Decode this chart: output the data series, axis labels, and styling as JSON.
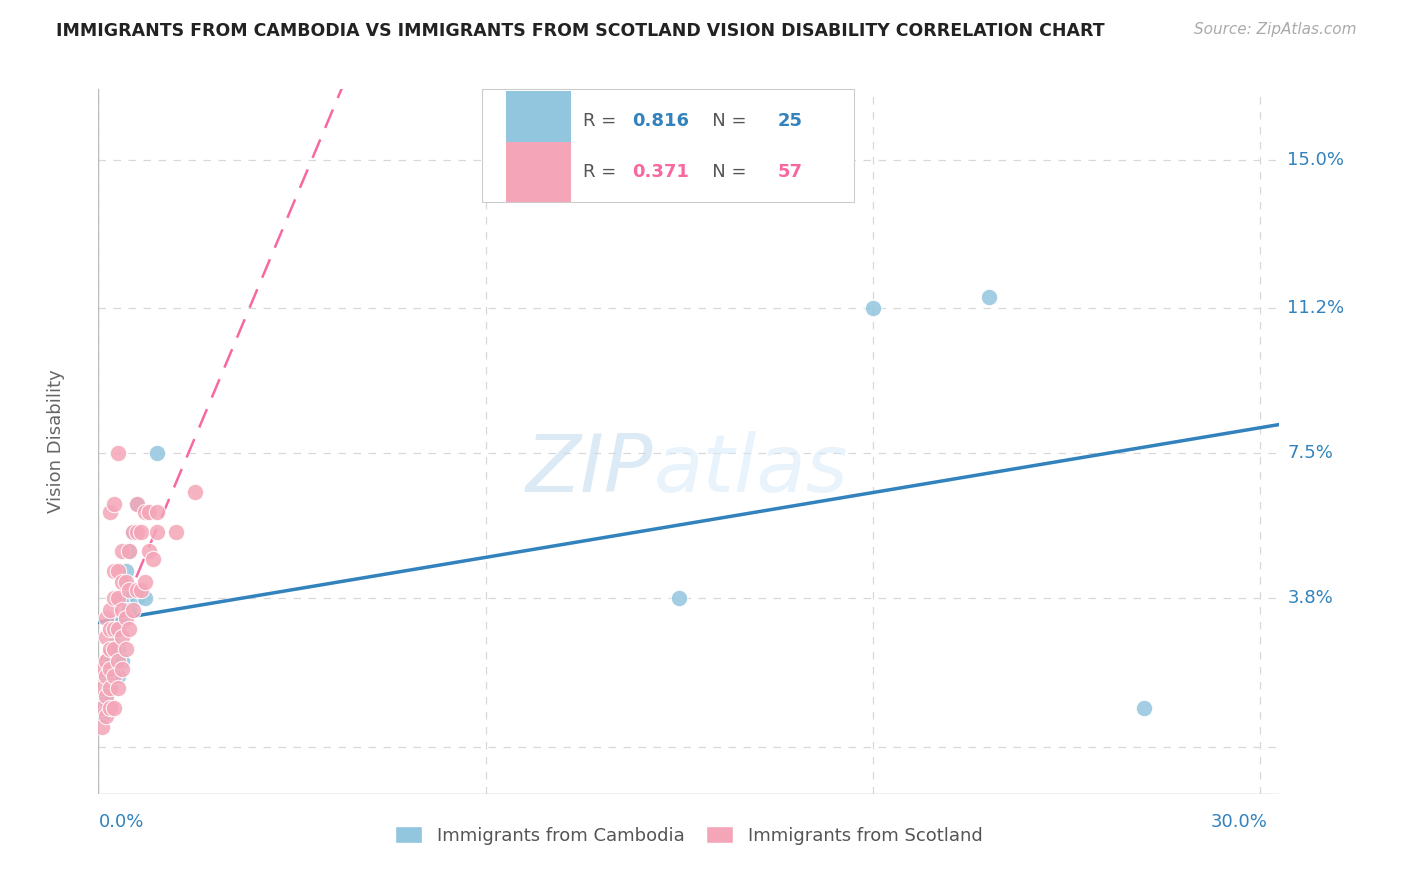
{
  "title": "IMMIGRANTS FROM CAMBODIA VS IMMIGRANTS FROM SCOTLAND VISION DISABILITY CORRELATION CHART",
  "source": "Source: ZipAtlas.com",
  "ylabel": "Vision Disability",
  "yticks": [
    0.0,
    0.038,
    0.075,
    0.112,
    0.15
  ],
  "ytick_labels": [
    "",
    "3.8%",
    "7.5%",
    "11.2%",
    "15.0%"
  ],
  "xtick_positions": [
    0.0,
    0.1,
    0.2,
    0.3
  ],
  "xlim": [
    0.0,
    0.305
  ],
  "ylim": [
    -0.012,
    0.168
  ],
  "legend_cambodia": "Immigrants from Cambodia",
  "legend_scotland": "Immigrants from Scotland",
  "R_cambodia": 0.816,
  "N_cambodia": 25,
  "R_scotland": 0.371,
  "N_scotland": 57,
  "cambodia_color": "#92c5de",
  "scotland_color": "#f4a6b8",
  "cambodia_line_color": "#3182bd",
  "scotland_line_color": "#f768a1",
  "watermark_color": "#daeaf5",
  "background_color": "#ffffff",
  "grid_color": "#d8d8d8",
  "cambodia_points": [
    [
      0.001,
      0.008
    ],
    [
      0.002,
      0.012
    ],
    [
      0.002,
      0.018
    ],
    [
      0.003,
      0.015
    ],
    [
      0.003,
      0.022
    ],
    [
      0.004,
      0.02
    ],
    [
      0.004,
      0.026
    ],
    [
      0.005,
      0.018
    ],
    [
      0.005,
      0.025
    ],
    [
      0.005,
      0.03
    ],
    [
      0.006,
      0.022
    ],
    [
      0.006,
      0.032
    ],
    [
      0.007,
      0.038
    ],
    [
      0.007,
      0.045
    ],
    [
      0.008,
      0.035
    ],
    [
      0.008,
      0.05
    ],
    [
      0.009,
      0.055
    ],
    [
      0.01,
      0.038
    ],
    [
      0.01,
      0.062
    ],
    [
      0.012,
      0.038
    ],
    [
      0.015,
      0.075
    ],
    [
      0.2,
      0.112
    ],
    [
      0.23,
      0.115
    ],
    [
      0.15,
      0.038
    ],
    [
      0.27,
      0.01
    ]
  ],
  "scotland_points": [
    [
      0.001,
      0.005
    ],
    [
      0.001,
      0.01
    ],
    [
      0.001,
      0.015
    ],
    [
      0.001,
      0.02
    ],
    [
      0.002,
      0.008
    ],
    [
      0.002,
      0.013
    ],
    [
      0.002,
      0.018
    ],
    [
      0.002,
      0.022
    ],
    [
      0.002,
      0.028
    ],
    [
      0.002,
      0.033
    ],
    [
      0.003,
      0.01
    ],
    [
      0.003,
      0.015
    ],
    [
      0.003,
      0.02
    ],
    [
      0.003,
      0.025
    ],
    [
      0.003,
      0.03
    ],
    [
      0.003,
      0.035
    ],
    [
      0.003,
      0.06
    ],
    [
      0.004,
      0.01
    ],
    [
      0.004,
      0.018
    ],
    [
      0.004,
      0.025
    ],
    [
      0.004,
      0.03
    ],
    [
      0.004,
      0.038
    ],
    [
      0.004,
      0.045
    ],
    [
      0.004,
      0.062
    ],
    [
      0.005,
      0.015
    ],
    [
      0.005,
      0.022
    ],
    [
      0.005,
      0.03
    ],
    [
      0.005,
      0.038
    ],
    [
      0.005,
      0.045
    ],
    [
      0.005,
      0.075
    ],
    [
      0.006,
      0.02
    ],
    [
      0.006,
      0.028
    ],
    [
      0.006,
      0.035
    ],
    [
      0.006,
      0.042
    ],
    [
      0.006,
      0.05
    ],
    [
      0.007,
      0.025
    ],
    [
      0.007,
      0.033
    ],
    [
      0.007,
      0.042
    ],
    [
      0.008,
      0.03
    ],
    [
      0.008,
      0.04
    ],
    [
      0.008,
      0.05
    ],
    [
      0.009,
      0.035
    ],
    [
      0.009,
      0.055
    ],
    [
      0.01,
      0.04
    ],
    [
      0.01,
      0.055
    ],
    [
      0.01,
      0.062
    ],
    [
      0.011,
      0.04
    ],
    [
      0.011,
      0.055
    ],
    [
      0.012,
      0.042
    ],
    [
      0.012,
      0.06
    ],
    [
      0.013,
      0.05
    ],
    [
      0.013,
      0.06
    ],
    [
      0.014,
      0.048
    ],
    [
      0.015,
      0.055
    ],
    [
      0.015,
      0.06
    ],
    [
      0.02,
      0.055
    ],
    [
      0.025,
      0.065
    ]
  ]
}
